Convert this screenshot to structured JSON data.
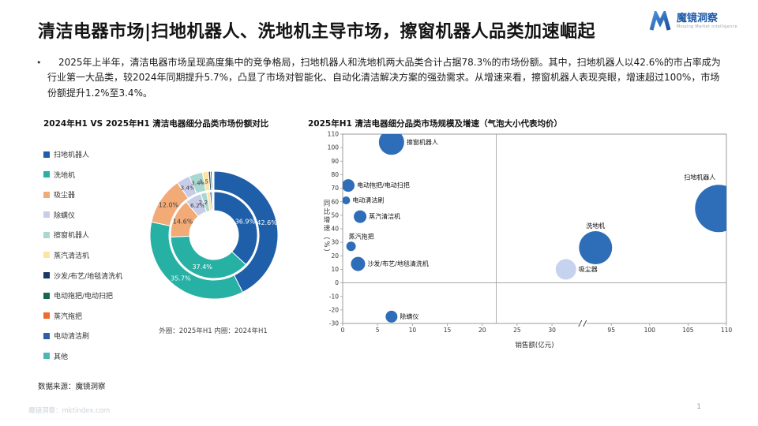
{
  "page": {
    "title": "清洁电器市场|扫地机器人、洗地机主导市场，擦窗机器人品类加速崛起",
    "bullet": "2025年上半年，清洁电器市场呈现高度集中的竞争格局，扫地机器人和洗地机两大品类合计占据78.3%的市场份额。其中，扫地机器人以42.6%的市占率成为行业第一大品类，较2024年同期提升5.7%，凸显了市场对智能化、自动化清洁解决方案的强劲需求。从增速来看，擦窗机器人表现亮眼，增速超过100%，市场份额提升1.2%至3.4%。",
    "source": "数据来源：魔镜洞察",
    "footer_left": "魔镜洞察：mktindex.com",
    "page_number": "1",
    "logo": {
      "name": "魔镜洞察",
      "subtitle": "Moojing Market Intelligence"
    }
  },
  "chart_data": [
    {
      "type": "pie",
      "title": "2024年H1 VS 2025年H1 清洁电器细分品类市场份额对比",
      "note": "外圈：2025年H1  内圈：2024年H1",
      "legend_position": "left",
      "categories": [
        "扫地机器人",
        "洗地机",
        "吸尘器",
        "除螨仪",
        "擦窗机器人",
        "蒸汽清洁机",
        "沙发/布艺/地毯清洗机",
        "电动拖把/电动扫把",
        "蒸汽拖把",
        "电动清洁刷",
        "其他"
      ],
      "colors": [
        "#1f5fa9",
        "#27b1a5",
        "#f2ab77",
        "#c7cde9",
        "#a8d8d0",
        "#ffe3a1",
        "#1b3864",
        "#17684f",
        "#ec6c30",
        "#2d5fab",
        "#4db8b0"
      ],
      "series": [
        {
          "name": "2025年H1",
          "ring": "outer",
          "values": [
            42.6,
            35.7,
            12.0,
            3.4,
            3.4,
            1.5,
            0.5,
            0.4,
            0.2,
            0.2,
            0.1
          ]
        },
        {
          "name": "2024年H1",
          "ring": "inner",
          "values": [
            36.9,
            37.4,
            14.6,
            6.2,
            2.2,
            1.2,
            0.6,
            0.4,
            0.3,
            0.2,
            0.0
          ]
        }
      ]
    },
    {
      "type": "scatter",
      "title": "2025年H1 清洁电器细分品类市场规模及增速（气泡大小代表均价）",
      "xlabel": "销售额(亿元)",
      "ylabel": "同比增速（%）",
      "ylim": [
        -30,
        110
      ],
      "y_ticks": [
        110,
        100,
        90,
        80,
        70,
        60,
        50,
        40,
        30,
        20,
        10,
        0,
        -10,
        -20,
        -30
      ],
      "x_ticks": [
        0,
        5,
        10,
        15,
        20,
        25,
        30,
        95,
        100,
        105,
        110
      ],
      "axis_break": [
        33,
        93
      ],
      "x_divider": 22,
      "bubble_color": "#2e6db7",
      "points": [
        {
          "label": "擦窗机器人",
          "x": 7,
          "y": 104,
          "r": 16,
          "label_pos": "right"
        },
        {
          "label": "电动拖把/电动扫把",
          "x": 0.8,
          "y": 72,
          "r": 8,
          "label_pos": "right"
        },
        {
          "label": "电动清洁刷",
          "x": 0.5,
          "y": 61,
          "r": 5,
          "label_pos": "right"
        },
        {
          "label": "蒸汽清洁机",
          "x": 2.5,
          "y": 49,
          "r": 8,
          "label_pos": "right"
        },
        {
          "label": "蒸汽拖把",
          "x": 1.2,
          "y": 27,
          "r": 6,
          "label_pos": "above-right"
        },
        {
          "label": "沙发/布艺/地毯清洗机",
          "x": 2.2,
          "y": 14,
          "r": 9,
          "label_pos": "right"
        },
        {
          "label": "洗地机",
          "x": 92,
          "y": 26,
          "r": 21,
          "label_pos": "above"
        },
        {
          "label": "吸尘器",
          "x": 32,
          "y": 10,
          "r": 13,
          "color": "#c6d3ee",
          "label_pos": "right"
        },
        {
          "label": "扫地机器人",
          "x": 109,
          "y": 55,
          "r": 30,
          "label_pos": "above-left"
        },
        {
          "label": "除螨仪",
          "x": 7,
          "y": -25,
          "r": 7.5,
          "label_pos": "right"
        }
      ]
    }
  ]
}
